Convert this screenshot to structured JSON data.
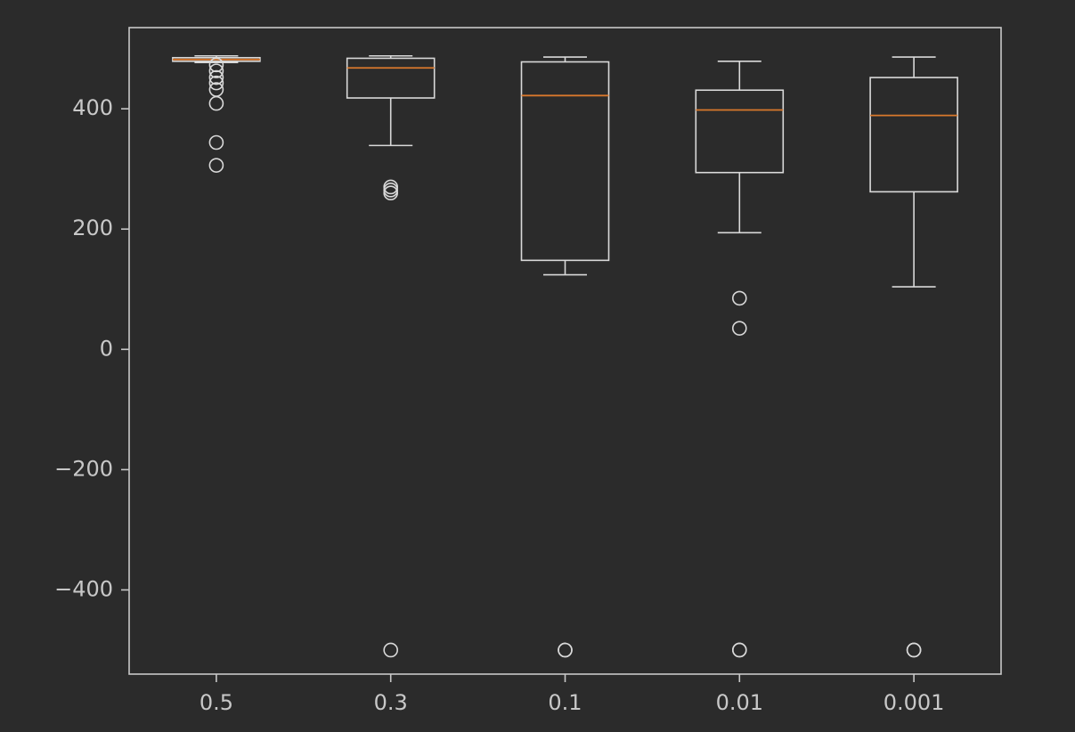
{
  "chart_data": {
    "type": "box",
    "title": "",
    "xlabel": "",
    "ylabel": "",
    "categories": [
      "0.5",
      "0.3",
      "0.1",
      "0.01",
      "0.001"
    ],
    "ylim": [
      -540,
      535
    ],
    "yticks": [
      400,
      200,
      0,
      -200,
      -400
    ],
    "ytick_labels": [
      "400",
      "200",
      "0",
      "−200",
      "−400"
    ],
    "grid": false,
    "boxes": [
      {
        "label": "0.5",
        "whisker_low": 477,
        "q1": 479,
        "median": 482,
        "q3": 485,
        "whisker_high": 488,
        "outliers": [
          473,
          463,
          452,
          443,
          432,
          409,
          344,
          306
        ]
      },
      {
        "label": "0.3",
        "whisker_low": 339,
        "q1": 418,
        "median": 468,
        "q3": 484,
        "whisker_high": 488,
        "outliers": [
          270,
          265,
          260,
          -500
        ]
      },
      {
        "label": "0.1",
        "whisker_low": 124,
        "q1": 148,
        "median": 422,
        "q3": 478,
        "whisker_high": 486,
        "outliers": [
          -500,
          -500
        ]
      },
      {
        "label": "0.01",
        "whisker_low": 194,
        "q1": 294,
        "median": 398,
        "q3": 431,
        "whisker_high": 479,
        "outliers": [
          85,
          35,
          -500,
          -500
        ]
      },
      {
        "label": "0.001",
        "whisker_low": 104,
        "q1": 262,
        "median": 389,
        "q3": 452,
        "whisker_high": 486,
        "outliers": [
          -500,
          -500
        ]
      }
    ],
    "colors": {
      "background": "#2b2b2b",
      "axes_edge": "#c8c8c8",
      "box_edge": "#d9d9d9",
      "median": "#d9782c",
      "tick_text": "#c8c8c8"
    }
  }
}
